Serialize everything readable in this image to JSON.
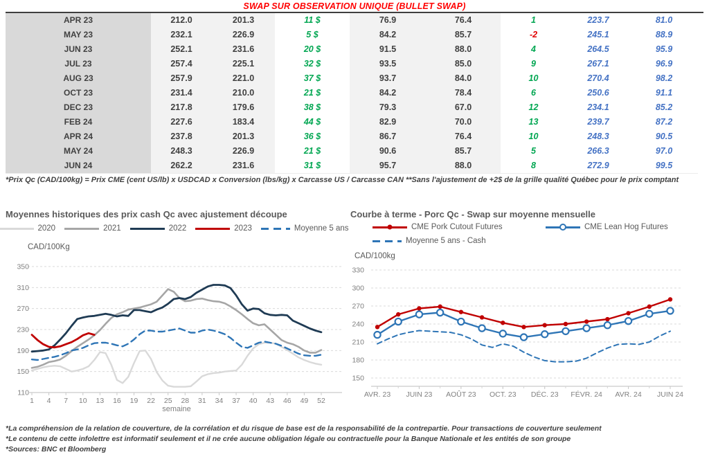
{
  "title": "SWAP SUR OBSERVATION UNIQUE (BULLET SWAP)",
  "table": {
    "rows": [
      [
        "APR 23",
        "212.0",
        "201.3",
        "11 $",
        "76.9",
        "76.4",
        "1",
        "223.7",
        "81.0"
      ],
      [
        "MAY 23",
        "232.1",
        "226.9",
        "5 $",
        "84.2",
        "85.7",
        "-2",
        "245.1",
        "88.9"
      ],
      [
        "JUN 23",
        "252.1",
        "231.6",
        "20 $",
        "91.5",
        "88.0",
        "4",
        "264.5",
        "95.9"
      ],
      [
        "JUL 23",
        "257.4",
        "225.1",
        "32 $",
        "93.5",
        "85.0",
        "9",
        "267.1",
        "96.9"
      ],
      [
        "AUG 23",
        "257.9",
        "221.0",
        "37 $",
        "93.7",
        "84.0",
        "10",
        "270.4",
        "98.2"
      ],
      [
        "OCT 23",
        "231.4",
        "210.0",
        "21 $",
        "84.2",
        "78.4",
        "6",
        "250.6",
        "91.1"
      ],
      [
        "DEC 23",
        "217.8",
        "179.6",
        "38 $",
        "79.3",
        "67.0",
        "12",
        "234.1",
        "85.2"
      ],
      [
        "FEB 24",
        "227.6",
        "183.4",
        "44 $",
        "82.9",
        "70.0",
        "13",
        "239.7",
        "87.2"
      ],
      [
        "APR 24",
        "237.8",
        "201.3",
        "36 $",
        "86.7",
        "76.4",
        "10",
        "248.3",
        "90.5"
      ],
      [
        "MAY 24",
        "248.3",
        "226.9",
        "21 $",
        "90.6",
        "85.7",
        "5",
        "266.3",
        "97.0"
      ],
      [
        "JUN 24",
        "262.2",
        "231.6",
        "31 $",
        "95.7",
        "88.0",
        "8",
        "272.9",
        "99.5"
      ]
    ],
    "footnote": "*Prix Qc (CAD/100kg) = Prix CME (cent US/lb) x USDCAD x Conversion (lbs/kg) x Carcasse US / Carcasse CAN **Sans l'ajustement de +2$ de la grille qualité Québec pour le prix comptant"
  },
  "colors": {
    "title_red": "#FF0000",
    "positive_green": "#00A651",
    "negative_red": "#E00000",
    "forward_blue": "#4472C4",
    "grid_gray": "#D9D9D9",
    "axis_text": "#808080"
  },
  "chart_data": [
    {
      "type": "line",
      "title": "Moyennes historiques des prix cash Qc avec ajustement découpe",
      "ylabel": "CAD/100Kg",
      "xlabel": "semaine",
      "ylim": [
        110,
        350
      ],
      "yticks": [
        110,
        150,
        190,
        230,
        270,
        310,
        350
      ],
      "xlim": [
        1,
        52
      ],
      "xticks": [
        1,
        4,
        7,
        10,
        13,
        16,
        19,
        22,
        25,
        28,
        31,
        34,
        37,
        40,
        43,
        46,
        49,
        52
      ],
      "grid": "dashed",
      "legend_position": "top",
      "series": [
        {
          "name": "2020",
          "color": "#D9D9D9",
          "style": "solid",
          "width": 2.4,
          "x_start": 1,
          "values": [
            152,
            155,
            158,
            160,
            161,
            160,
            155,
            150,
            152,
            155,
            160,
            172,
            187,
            185,
            163,
            134,
            128,
            140,
            166,
            189,
            190,
            174,
            149,
            133,
            123,
            121,
            121,
            121,
            122,
            131,
            141,
            145,
            147,
            148,
            150,
            151,
            152,
            163,
            180,
            194,
            202,
            205,
            205,
            203,
            197,
            191,
            184,
            177,
            172,
            168,
            165,
            163
          ]
        },
        {
          "name": "2021",
          "color": "#A6A6A6",
          "style": "solid",
          "width": 2.6,
          "x_start": 1,
          "values": [
            157,
            159,
            163,
            168,
            170,
            173,
            180,
            189,
            197,
            204,
            211,
            219,
            229,
            241,
            252,
            259,
            263,
            268,
            270,
            272,
            275,
            278,
            283,
            295,
            307,
            302,
            290,
            284,
            285,
            288,
            289,
            286,
            284,
            283,
            280,
            274,
            267,
            259,
            250,
            242,
            238,
            240,
            230,
            220,
            210,
            205,
            202,
            197,
            190,
            186,
            186,
            191
          ]
        },
        {
          "name": "2022",
          "color": "#1F3B54",
          "style": "solid",
          "width": 2.8,
          "x_start": 1,
          "values": [
            188,
            189,
            190,
            192,
            200,
            211,
            223,
            237,
            250,
            253,
            255,
            256,
            258,
            260,
            258,
            255,
            257,
            256,
            267,
            267,
            265,
            263,
            268,
            272,
            279,
            288,
            290,
            288,
            292,
            300,
            306,
            312,
            315,
            315,
            314,
            309,
            295,
            278,
            266,
            270,
            269,
            261,
            258,
            257,
            258,
            257,
            247,
            242,
            237,
            232,
            228,
            225
          ]
        },
        {
          "name": "2023",
          "color": "#C00000",
          "style": "solid",
          "width": 2.8,
          "x_start": 1,
          "values": [
            220,
            210,
            202,
            197,
            196,
            198,
            202,
            206,
            212,
            219,
            223,
            220
          ]
        },
        {
          "name": "Moyenne 5 ans",
          "color": "#2E75B6",
          "style": "dashed",
          "width": 2.4,
          "x_start": 1,
          "values": [
            173,
            172,
            174,
            176,
            178,
            181,
            185,
            190,
            192,
            195,
            200,
            204,
            205,
            205,
            203,
            200,
            198,
            203,
            211,
            221,
            228,
            228,
            226,
            226,
            228,
            230,
            232,
            228,
            224,
            224,
            228,
            230,
            228,
            225,
            221,
            214,
            205,
            197,
            195,
            200,
            205,
            207,
            205,
            203,
            199,
            194,
            189,
            184,
            181,
            180,
            180,
            182
          ]
        }
      ]
    },
    {
      "type": "line",
      "title": "Courbe à terme - Porc Qc - Swap sur moyenne mensuelle",
      "ylabel": "CAD/100kg",
      "xlabel": "",
      "ylim": [
        150,
        330
      ],
      "yticks": [
        150,
        180,
        210,
        240,
        270,
        300,
        330
      ],
      "xlim": [
        0,
        14
      ],
      "xticks_labeled": [
        {
          "v": 0,
          "label": "AVR. 23"
        },
        {
          "v": 2,
          "label": "JUIN 23"
        },
        {
          "v": 4,
          "label": "AOÛT 23"
        },
        {
          "v": 6,
          "label": "OCT. 23"
        },
        {
          "v": 8,
          "label": "DÉC. 23"
        },
        {
          "v": 10,
          "label": "FÉVR. 24"
        },
        {
          "v": 12,
          "label": "AVR. 24"
        },
        {
          "v": 14,
          "label": "JUIN 24"
        }
      ],
      "grid": "dashed",
      "legend_position": "top",
      "series": [
        {
          "name": "CME Pork Cutout Futures",
          "color": "#C00000",
          "style": "solid",
          "marker": "dot",
          "width": 2.4,
          "x": [
            0,
            1,
            2,
            3,
            4,
            5,
            6,
            7,
            8,
            9,
            10,
            11,
            12,
            13,
            14
          ],
          "values": [
            235,
            256,
            266,
            269,
            260,
            251,
            242,
            235,
            238,
            240,
            244,
            248,
            258,
            269,
            281
          ]
        },
        {
          "name": "CME Lean Hog Futures",
          "color": "#2E75B6",
          "style": "solid",
          "marker": "open",
          "width": 2.4,
          "x": [
            0,
            1,
            2,
            3,
            4,
            5,
            6,
            7,
            8,
            9,
            10,
            11,
            12,
            13,
            14
          ],
          "values": [
            222,
            244,
            256,
            259,
            244,
            233,
            224,
            218,
            223,
            228,
            233,
            238,
            245,
            257,
            262
          ]
        },
        {
          "name": "Moyenne 5 ans - Cash",
          "color": "#2E75B6",
          "style": "dashed",
          "width": 2,
          "x": [
            0,
            0.5,
            1,
            1.5,
            2,
            2.5,
            3,
            3.5,
            4,
            4.5,
            5,
            5.5,
            6,
            6.5,
            7,
            7.5,
            8,
            8.5,
            9,
            9.5,
            10,
            10.5,
            11,
            11.5,
            12,
            12.5,
            13,
            13.5,
            14
          ],
          "values": [
            207,
            215,
            222,
            226,
            229,
            228,
            227,
            226,
            222,
            215,
            205,
            201,
            207,
            203,
            193,
            185,
            179,
            177,
            177,
            178,
            183,
            192,
            200,
            206,
            207,
            206,
            210,
            220,
            228
          ]
        }
      ]
    }
  ],
  "disclaimers": [
    "*La compréhension de la relation de couverture, de la corrélation et du risque de base est de la responsabilité de la contrepartie. Pour transactions de couverture seulement",
    "*Le contenu de cette infolettre est informatif seulement et il ne crée aucune obligation légale ou contractuelle pour la Banque Nationale et les entités de son groupe",
    "*Sources: BNC et Bloomberg"
  ]
}
